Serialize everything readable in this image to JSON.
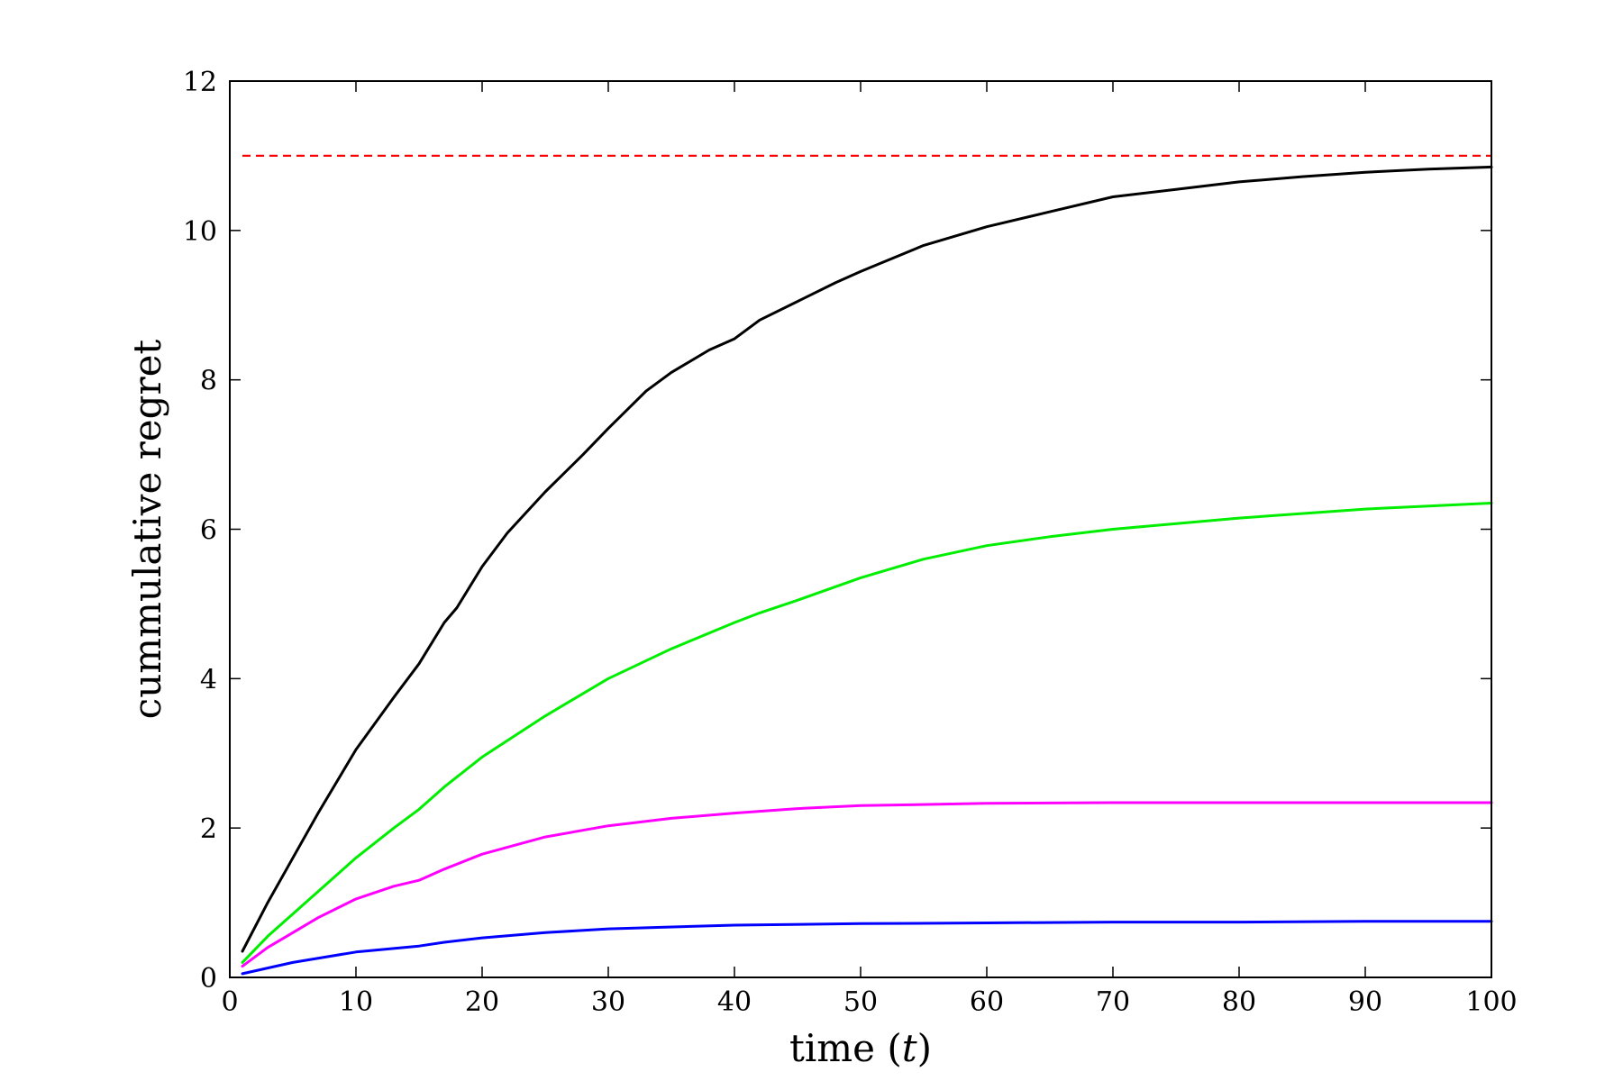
{
  "chart_data": {
    "type": "line",
    "title": "",
    "xlabel": "time",
    "xlabel_symbol": "t",
    "ylabel": "cummulative regret",
    "xlim": [
      0,
      100
    ],
    "ylim": [
      0,
      12
    ],
    "xticks": [
      "0",
      "10",
      "20",
      "30",
      "40",
      "50",
      "60",
      "70",
      "80",
      "90",
      "100"
    ],
    "yticks": [
      "0",
      "2",
      "4",
      "6",
      "8",
      "10",
      "12"
    ],
    "grid": false,
    "legend": "none",
    "series": [
      {
        "color": "#000000",
        "style": "solid",
        "x": [
          1,
          3,
          5,
          7,
          10,
          13,
          15,
          17,
          18,
          20,
          22,
          25,
          28,
          30,
          33,
          35,
          38,
          40,
          42,
          45,
          48,
          50,
          55,
          60,
          65,
          70,
          75,
          80,
          85,
          90,
          95,
          100
        ],
        "y": [
          0.35,
          1.0,
          1.6,
          2.2,
          3.05,
          3.75,
          4.2,
          4.75,
          4.95,
          5.5,
          5.95,
          6.5,
          7.0,
          7.35,
          7.85,
          8.1,
          8.4,
          8.55,
          8.8,
          9.05,
          9.3,
          9.45,
          9.8,
          10.05,
          10.25,
          10.45,
          10.55,
          10.65,
          10.72,
          10.78,
          10.82,
          10.85
        ]
      },
      {
        "color": "#00ee00",
        "style": "solid",
        "x": [
          1,
          3,
          5,
          7,
          10,
          13,
          15,
          17,
          20,
          25,
          30,
          35,
          40,
          42,
          45,
          50,
          55,
          60,
          65,
          70,
          80,
          90,
          100
        ],
        "y": [
          0.2,
          0.55,
          0.85,
          1.15,
          1.6,
          2.0,
          2.25,
          2.55,
          2.95,
          3.5,
          4.0,
          4.4,
          4.75,
          4.88,
          5.05,
          5.35,
          5.6,
          5.78,
          5.9,
          6.0,
          6.15,
          6.27,
          6.35
        ]
      },
      {
        "color": "#ff00ff",
        "style": "solid",
        "x": [
          1,
          3,
          5,
          7,
          10,
          13,
          15,
          17,
          20,
          25,
          30,
          35,
          40,
          45,
          50,
          60,
          70,
          80,
          90,
          100
        ],
        "y": [
          0.15,
          0.4,
          0.6,
          0.8,
          1.05,
          1.22,
          1.3,
          1.45,
          1.65,
          1.88,
          2.03,
          2.13,
          2.2,
          2.26,
          2.3,
          2.33,
          2.34,
          2.34,
          2.34,
          2.34
        ]
      },
      {
        "color": "#0000ff",
        "style": "solid",
        "x": [
          1,
          5,
          10,
          15,
          17,
          20,
          25,
          30,
          40,
          50,
          60,
          70,
          80,
          90,
          100
        ],
        "y": [
          0.05,
          0.2,
          0.34,
          0.42,
          0.47,
          0.53,
          0.6,
          0.65,
          0.7,
          0.72,
          0.73,
          0.74,
          0.74,
          0.75,
          0.75
        ]
      },
      {
        "color": "#ff0000",
        "style": "dashed",
        "x": [
          1,
          100
        ],
        "y": [
          11,
          11
        ]
      }
    ]
  }
}
